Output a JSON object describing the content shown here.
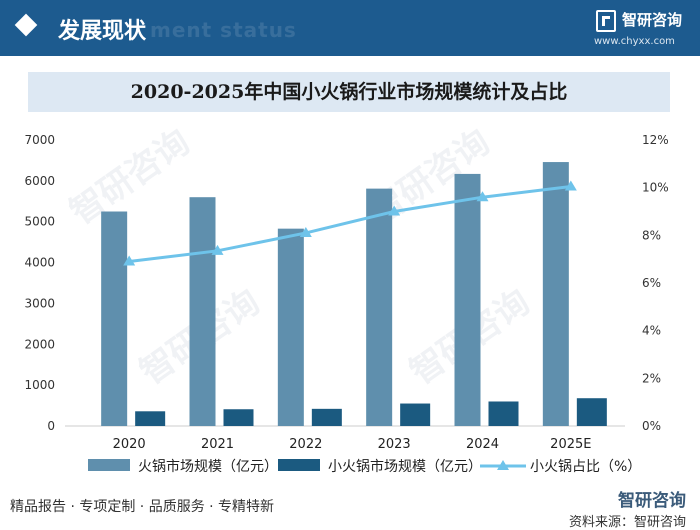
{
  "header": {
    "section_title": "发展现状",
    "section_subtitle_en": "ment status",
    "brand_name": "智研咨询",
    "brand_url": "www.chyxx.com"
  },
  "colors": {
    "header_bg": "#1d5b8f",
    "bar_total": "#5f8fad",
    "bar_small": "#1b5a80",
    "line_share": "#6ec3ea",
    "title_band": "#dde8f3"
  },
  "footer": {
    "left_text": "精品报告 · 专项定制 · 品质服务 · 专精特新",
    "source_text": "资料来源：智研咨询",
    "brand_mark": "智研咨询"
  },
  "watermark_text": "智研咨询",
  "chart_data": {
    "type": "bar",
    "title": "2020-2025年中国小火锅行业市场规模统计及占比",
    "categories": [
      "2020",
      "2021",
      "2022",
      "2023",
      "2024",
      "2025E"
    ],
    "series": [
      {
        "name": "火锅市场规模（亿元）",
        "type": "bar",
        "axis": "left",
        "values": [
          5250,
          5600,
          4830,
          5810,
          6170,
          6460
        ]
      },
      {
        "name": "小火锅市场规模（亿元）",
        "type": "bar",
        "axis": "left",
        "values": [
          360,
          410,
          420,
          550,
          600,
          680
        ]
      },
      {
        "name": "小火锅占比（%）",
        "type": "line",
        "axis": "right",
        "values": [
          6.9,
          7.35,
          8.1,
          9.0,
          9.6,
          10.05
        ]
      }
    ],
    "y_left": {
      "min": 0,
      "max": 7000,
      "ticks": [
        "0",
        "1000",
        "2000",
        "3000",
        "4000",
        "5000",
        "6000",
        "7000"
      ]
    },
    "y_right": {
      "min": 0,
      "max": 12,
      "ticks": [
        "0%",
        "2%",
        "4%",
        "6%",
        "8%",
        "10%",
        "12%"
      ]
    },
    "grid": false,
    "legend_position": "bottom"
  }
}
